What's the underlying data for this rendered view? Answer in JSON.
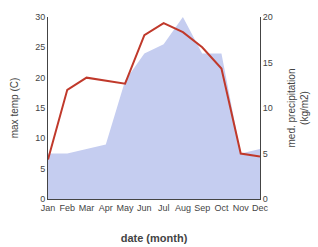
{
  "chart_data": {
    "type": "line",
    "xlabel": "date (month)",
    "ylabel": "max temp (C)",
    "y2label": "med. precipitation\n(kg/m2)",
    "categories": [
      "Jan",
      "Feb",
      "Mar",
      "Apr",
      "May",
      "Jun",
      "Jul",
      "Aug",
      "Sep",
      "Oct",
      "Nov",
      "Dec"
    ],
    "series": [
      {
        "type": "area",
        "axis": "y2",
        "color": "#c5cdf0",
        "values": [
          5.0,
          5.0,
          5.5,
          6.0,
          13.0,
          16.0,
          17.0,
          20.0,
          16.0,
          16.0,
          5.0,
          5.5
        ]
      },
      {
        "type": "line",
        "color": "#c0392b",
        "values": [
          6.5,
          18.0,
          20.0,
          19.5,
          19.0,
          27.0,
          29.0,
          27.5,
          25.0,
          21.5,
          7.5,
          7.0
        ]
      }
    ],
    "ylim": [
      0,
      30
    ],
    "yticks": [
      0,
      5,
      10,
      15,
      20,
      25,
      30
    ],
    "y2lim": [
      0,
      20
    ],
    "y2ticks": [
      0,
      5,
      10,
      15,
      20
    ],
    "grid": false
  }
}
